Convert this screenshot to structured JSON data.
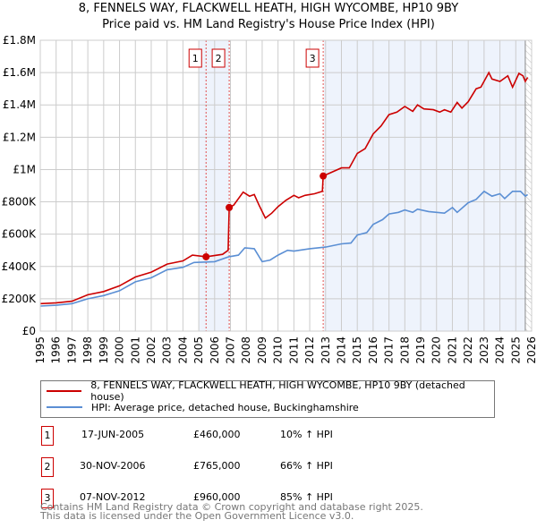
{
  "title": "8, FENNELS WAY, FLACKWELL HEATH, HIGH WYCOMBE, HP10 9BY",
  "subtitle": "Price paid vs. HM Land Registry's House Price Index (HPI)",
  "colors": {
    "property": "#cc0000",
    "hpi": "#5b8fd4",
    "shade": "#eef3fc",
    "grid": "#cccccc"
  },
  "chart_data": {
    "type": "line",
    "title": "8, FENNELS WAY, FLACKWELL HEATH, HIGH WYCOMBE, HP10 9BY",
    "xlim": [
      1995,
      2026
    ],
    "ylim": [
      0,
      1800000
    ],
    "x_ticks": [
      "1995",
      "1996",
      "1997",
      "1998",
      "1999",
      "2000",
      "2001",
      "2002",
      "2003",
      "2004",
      "2005",
      "2006",
      "2007",
      "2008",
      "2009",
      "2010",
      "2011",
      "2012",
      "2013",
      "2014",
      "2015",
      "2016",
      "2017",
      "2018",
      "2019",
      "2020",
      "2021",
      "2022",
      "2023",
      "2024",
      "2025",
      "2026"
    ],
    "y_ticks": [
      {
        "v": 0,
        "label": "£0"
      },
      {
        "v": 200000,
        "label": "£200K"
      },
      {
        "v": 400000,
        "label": "£400K"
      },
      {
        "v": 600000,
        "label": "£600K"
      },
      {
        "v": 800000,
        "label": "£800K"
      },
      {
        "v": 1000000,
        "label": "£1M"
      },
      {
        "v": 1200000,
        "label": "£1.2M"
      },
      {
        "v": 1400000,
        "label": "£1.4M"
      },
      {
        "v": 1600000,
        "label": "£1.6M"
      },
      {
        "v": 1800000,
        "label": "£1.8M"
      }
    ],
    "grid": true,
    "shaded_ranges": [
      [
        2005.0,
        2006.92
      ],
      [
        2012.9,
        2025.6
      ]
    ],
    "hatched_after": 2025.6,
    "series": [
      {
        "name": "8, FENNELS WAY, FLACKWELL HEATH, HIGH WYCOMBE, HP10 9BY (detached house)",
        "points": [
          [
            1995,
            170
          ],
          [
            1996,
            175
          ],
          [
            1997,
            185
          ],
          [
            1998,
            225
          ],
          [
            1999,
            245
          ],
          [
            2000,
            280
          ],
          [
            2001,
            335
          ],
          [
            2002,
            365
          ],
          [
            2003,
            415
          ],
          [
            2004,
            435
          ],
          [
            2004.6,
            470
          ],
          [
            2005.46,
            460
          ],
          [
            2006.5,
            475
          ],
          [
            2006.85,
            500
          ],
          [
            2006.92,
            765
          ],
          [
            2007.2,
            780
          ],
          [
            2007.8,
            860
          ],
          [
            2008.2,
            835
          ],
          [
            2008.5,
            845
          ],
          [
            2008.8,
            780
          ],
          [
            2009.2,
            700
          ],
          [
            2009.6,
            730
          ],
          [
            2010,
            770
          ],
          [
            2010.5,
            810
          ],
          [
            2011,
            840
          ],
          [
            2011.3,
            825
          ],
          [
            2011.7,
            840
          ],
          [
            2012.3,
            850
          ],
          [
            2012.8,
            865
          ],
          [
            2012.85,
            960
          ],
          [
            2013.3,
            980
          ],
          [
            2014,
            1010
          ],
          [
            2014.5,
            1010
          ],
          [
            2015,
            1100
          ],
          [
            2015.5,
            1130
          ],
          [
            2016,
            1220
          ],
          [
            2016.5,
            1270
          ],
          [
            2017,
            1340
          ],
          [
            2017.5,
            1355
          ],
          [
            2018,
            1390
          ],
          [
            2018.5,
            1360
          ],
          [
            2018.8,
            1400
          ],
          [
            2019.2,
            1375
          ],
          [
            2019.8,
            1370
          ],
          [
            2020.2,
            1355
          ],
          [
            2020.5,
            1370
          ],
          [
            2020.9,
            1355
          ],
          [
            2021.3,
            1415
          ],
          [
            2021.6,
            1380
          ],
          [
            2022,
            1420
          ],
          [
            2022.5,
            1500
          ],
          [
            2022.8,
            1510
          ],
          [
            2023.3,
            1600
          ],
          [
            2023.5,
            1560
          ],
          [
            2024,
            1545
          ],
          [
            2024.5,
            1580
          ],
          [
            2024.8,
            1510
          ],
          [
            2025.2,
            1595
          ],
          [
            2025.45,
            1580
          ],
          [
            2025.6,
            1545
          ],
          [
            2025.75,
            1570
          ]
        ]
      },
      {
        "name": "HPI: Average price, detached house, Buckinghamshire",
        "points": [
          [
            1995,
            155
          ],
          [
            1996,
            160
          ],
          [
            1997,
            170
          ],
          [
            1998,
            200
          ],
          [
            1999,
            220
          ],
          [
            2000,
            250
          ],
          [
            2001,
            305
          ],
          [
            2002,
            330
          ],
          [
            2003,
            380
          ],
          [
            2004,
            395
          ],
          [
            2004.7,
            425
          ],
          [
            2006,
            430
          ],
          [
            2006.9,
            460
          ],
          [
            2007.5,
            470
          ],
          [
            2007.9,
            515
          ],
          [
            2008.5,
            510
          ],
          [
            2009,
            430
          ],
          [
            2009.5,
            440
          ],
          [
            2010,
            470
          ],
          [
            2010.6,
            500
          ],
          [
            2011,
            495
          ],
          [
            2012,
            510
          ],
          [
            2013,
            520
          ],
          [
            2014,
            540
          ],
          [
            2014.6,
            545
          ],
          [
            2015,
            595
          ],
          [
            2015.6,
            610
          ],
          [
            2016,
            660
          ],
          [
            2016.6,
            690
          ],
          [
            2017,
            725
          ],
          [
            2017.6,
            735
          ],
          [
            2018,
            750
          ],
          [
            2018.5,
            735
          ],
          [
            2018.8,
            755
          ],
          [
            2019.5,
            740
          ],
          [
            2020.5,
            730
          ],
          [
            2021,
            765
          ],
          [
            2021.3,
            735
          ],
          [
            2022,
            795
          ],
          [
            2022.5,
            815
          ],
          [
            2023,
            865
          ],
          [
            2023.5,
            835
          ],
          [
            2024,
            850
          ],
          [
            2024.3,
            820
          ],
          [
            2024.8,
            865
          ],
          [
            2025.3,
            865
          ],
          [
            2025.6,
            835
          ],
          [
            2025.75,
            845
          ]
        ]
      }
    ],
    "value_unit": "thousands GBP",
    "sales": [
      {
        "n": "1",
        "x": 2005.46,
        "value": 460
      },
      {
        "n": "2",
        "x": 2006.92,
        "value": 765
      },
      {
        "n": "3",
        "x": 2012.85,
        "value": 960
      }
    ]
  },
  "legend": {
    "property": "8, FENNELS WAY, FLACKWELL HEATH, HIGH WYCOMBE, HP10 9BY (detached house)",
    "hpi": "HPI: Average price, detached house, Buckinghamshire"
  },
  "transactions": [
    {
      "n": "1",
      "date": "17-JUN-2005",
      "price": "£460,000",
      "hpi": "10% ↑ HPI"
    },
    {
      "n": "2",
      "date": "30-NOV-2006",
      "price": "£765,000",
      "hpi": "66% ↑ HPI"
    },
    {
      "n": "3",
      "date": "07-NOV-2012",
      "price": "£960,000",
      "hpi": "85% ↑ HPI"
    }
  ],
  "footer": {
    "line1": "Contains HM Land Registry data © Crown copyright and database right 2025.",
    "line2": "This data is licensed under the Open Government Licence v3.0."
  }
}
